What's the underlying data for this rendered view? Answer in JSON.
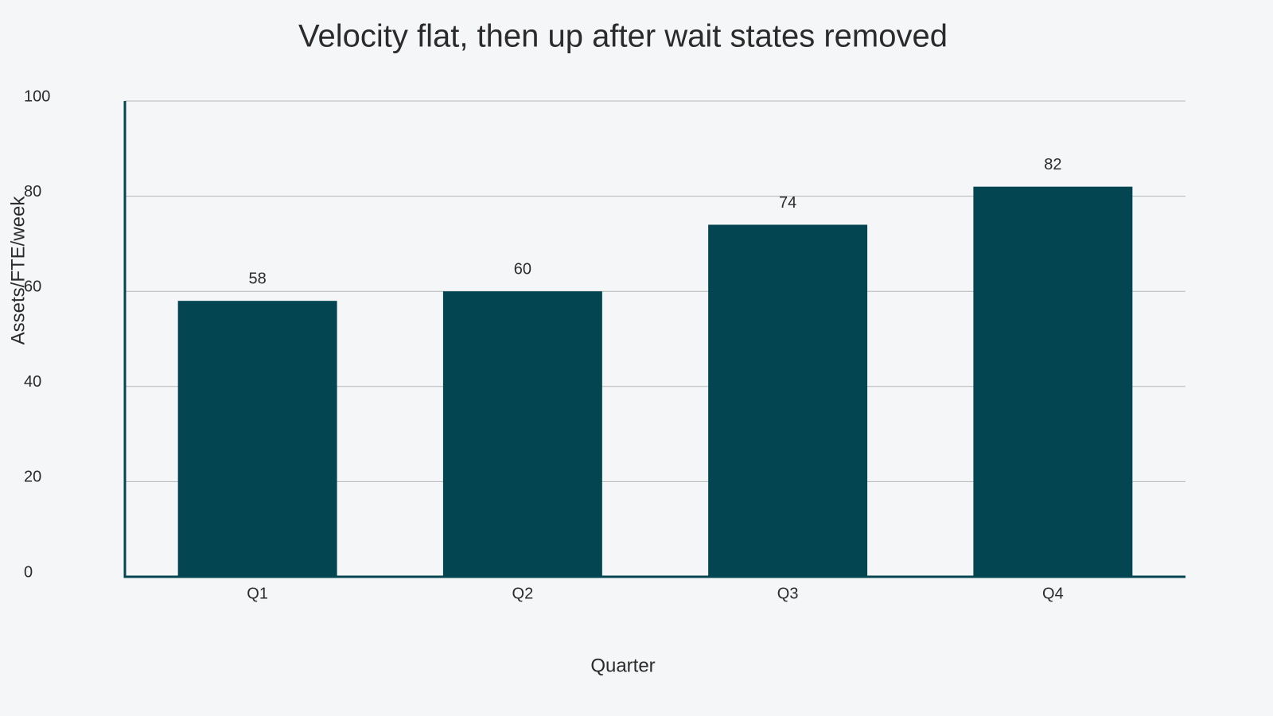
{
  "chart_data": {
    "type": "bar",
    "title": "Velocity flat, then up after wait states removed",
    "x_label": "Quarter",
    "y_label": "Assets/FTE/week",
    "categories": [
      "Q1",
      "Q2",
      "Q3",
      "Q4"
    ],
    "values": [
      58,
      60,
      74,
      82
    ],
    "color": "#034651",
    "ylim": [
      0,
      100
    ],
    "yticks": [
      0,
      20,
      40,
      60,
      80,
      100
    ],
    "grid": true
  }
}
